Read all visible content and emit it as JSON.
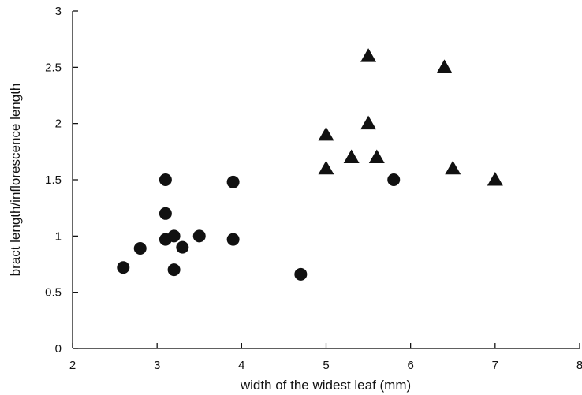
{
  "chart_data": {
    "type": "scatter",
    "title": "",
    "xlabel": "width of the widest leaf (mm)",
    "ylabel": "bract length/inflorescence length",
    "xlim": [
      2,
      8
    ],
    "ylim": [
      0,
      3
    ],
    "xticks": [
      "2",
      "3",
      "4",
      "5",
      "6",
      "7",
      "8"
    ],
    "yticks": [
      "0",
      "0.5",
      "1",
      "1.5",
      "2",
      "2.5",
      "3"
    ],
    "grid": false,
    "legend": "none",
    "series": [
      {
        "marker": "circle",
        "color": "#111111",
        "points": [
          {
            "x": 2.6,
            "y": 0.72
          },
          {
            "x": 2.8,
            "y": 0.89
          },
          {
            "x": 3.1,
            "y": 1.5
          },
          {
            "x": 3.1,
            "y": 1.2
          },
          {
            "x": 3.1,
            "y": 0.97
          },
          {
            "x": 3.2,
            "y": 1.0
          },
          {
            "x": 3.2,
            "y": 0.7
          },
          {
            "x": 3.3,
            "y": 0.9
          },
          {
            "x": 3.5,
            "y": 1.0
          },
          {
            "x": 3.9,
            "y": 1.48
          },
          {
            "x": 3.9,
            "y": 0.97
          },
          {
            "x": 4.7,
            "y": 0.66
          },
          {
            "x": 5.8,
            "y": 1.5
          }
        ]
      },
      {
        "marker": "triangle",
        "color": "#111111",
        "points": [
          {
            "x": 5.0,
            "y": 1.9
          },
          {
            "x": 5.0,
            "y": 1.6
          },
          {
            "x": 5.3,
            "y": 1.7
          },
          {
            "x": 5.5,
            "y": 2.6
          },
          {
            "x": 5.5,
            "y": 2.0
          },
          {
            "x": 5.6,
            "y": 1.7
          },
          {
            "x": 6.4,
            "y": 2.5
          },
          {
            "x": 6.5,
            "y": 1.6
          },
          {
            "x": 7.0,
            "y": 1.5
          }
        ]
      }
    ]
  }
}
